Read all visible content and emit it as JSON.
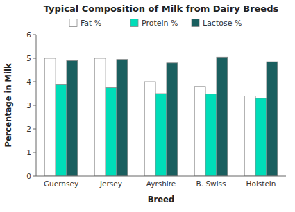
{
  "chart_data": {
    "type": "bar",
    "title": "Typical Composition of Milk from Dairy Breeds",
    "xlabel": "Breed",
    "ylabel": "Percentage in Milk",
    "categories": [
      "Guernsey",
      "Jersey",
      "Ayrshire",
      "B. Swiss",
      "Holstein"
    ],
    "series": [
      {
        "name": "Fat %",
        "color": "white",
        "values": [
          5.0,
          5.0,
          4.0,
          3.8,
          3.4
        ]
      },
      {
        "name": "Protein %",
        "color": "#00ddb8",
        "values": [
          3.9,
          3.75,
          3.5,
          3.48,
          3.3
        ]
      },
      {
        "name": "Lactose %",
        "color": "#1a5f5f",
        "values": [
          4.9,
          4.95,
          4.8,
          5.05,
          4.85
        ]
      }
    ],
    "ylim": [
      0,
      6
    ],
    "yticks": [
      0,
      1,
      2,
      3,
      4,
      5,
      6
    ],
    "grid": false,
    "legend": "top"
  }
}
